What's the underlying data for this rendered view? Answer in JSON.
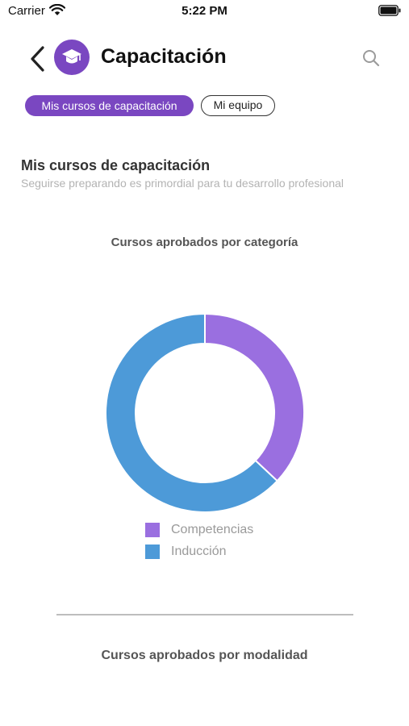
{
  "status_bar": {
    "carrier": "Carrier",
    "time": "5:22 PM"
  },
  "header": {
    "title": "Capacitación",
    "logo_icon": "graduation-cap-icon",
    "back_icon": "chevron-left-icon",
    "search_icon": "search-icon"
  },
  "tabs": [
    {
      "label": "Mis cursos de capacitación",
      "active": true
    },
    {
      "label": "Mi equipo",
      "active": false
    }
  ],
  "section": {
    "title": "Mis cursos de capacitación",
    "subtitle": "Seguirse preparando es primordial para tu desarrollo profesional"
  },
  "colors": {
    "accent": "#7a47c1",
    "competencias": "#9a6fe0",
    "induccion": "#4d9ad8"
  },
  "chart_data": [
    {
      "type": "pie",
      "title": "Cursos aprobados por categoría",
      "donut": true,
      "categories": [
        "Competencias",
        "Inducción"
      ],
      "values": [
        37,
        63
      ],
      "colors": [
        "#9a6fe0",
        "#4d9ad8"
      ],
      "legend": "bottom"
    },
    {
      "type": "pie",
      "title": "Cursos aprobados por modalidad",
      "categories": [],
      "values": []
    }
  ]
}
